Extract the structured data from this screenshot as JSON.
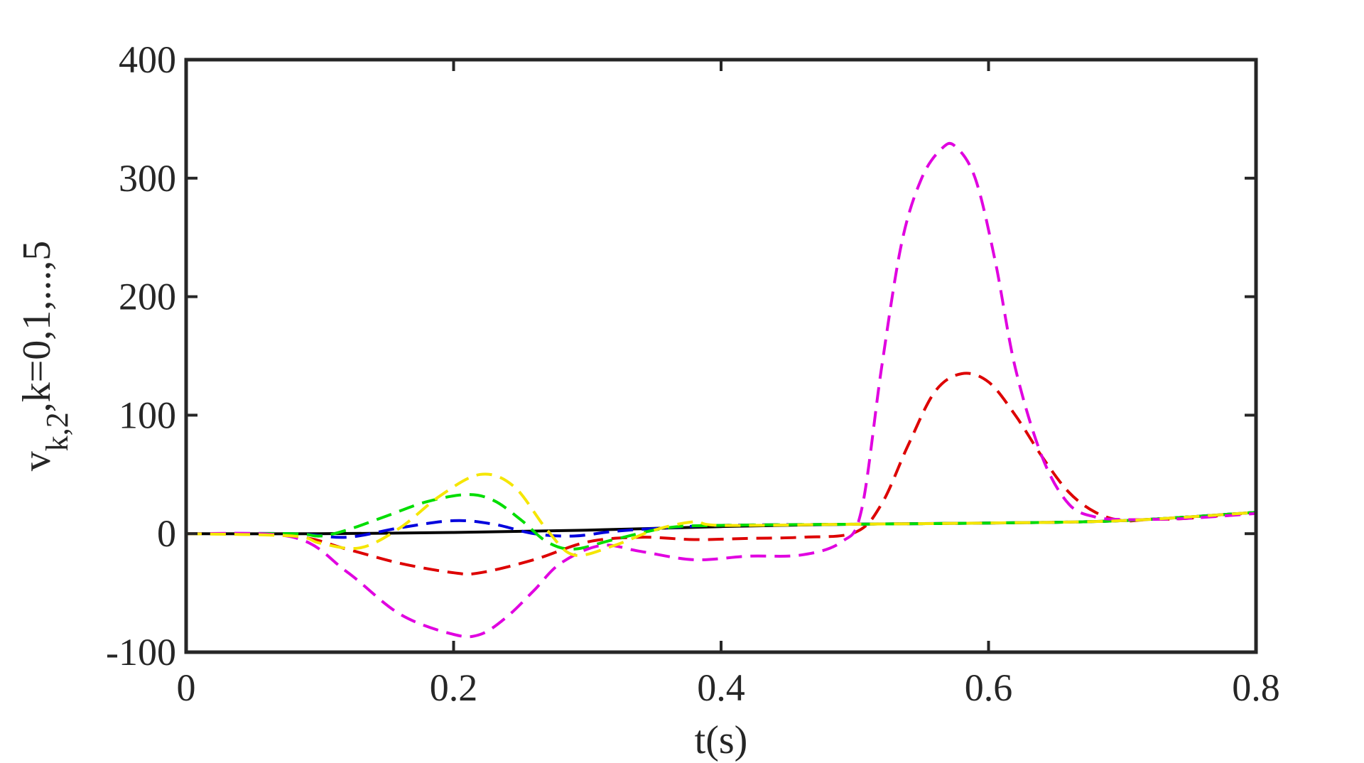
{
  "chart_data": {
    "type": "line",
    "title": "",
    "xlabel": "t(s)",
    "ylabel": {
      "base": "v",
      "sub": "k,2",
      "rest": ",k=0,1,...,5"
    },
    "xlim": [
      0,
      0.8
    ],
    "ylim": [
      -100,
      400
    ],
    "x_ticks": [
      0,
      0.2,
      0.4,
      0.6,
      0.8
    ],
    "x_tick_labels": [
      "0",
      "0.2",
      "0.4",
      "0.6",
      "0.8"
    ],
    "y_ticks": [
      -100,
      0,
      100,
      200,
      300,
      400
    ],
    "y_tick_labels": [
      "-100",
      "0",
      "100",
      "200",
      "300",
      "400"
    ],
    "grid": false,
    "legend": "none",
    "series": [
      {
        "color": "#000000",
        "style": "solid",
        "x": [
          0,
          0.1,
          0.2,
          0.3,
          0.4,
          0.5,
          0.6,
          0.7,
          0.8
        ],
        "y": [
          0,
          0,
          1,
          3,
          6,
          8,
          9,
          11,
          18
        ]
      },
      {
        "color": "#0000dd",
        "style": "dashed",
        "x": [
          0,
          0.08,
          0.12,
          0.16,
          0.2,
          0.23,
          0.26,
          0.29,
          0.32,
          0.36,
          0.4,
          0.5,
          0.6,
          0.7,
          0.8
        ],
        "y": [
          0,
          0,
          -3,
          5,
          11,
          8,
          0,
          -2,
          2,
          5,
          7,
          8,
          9,
          11,
          18
        ]
      },
      {
        "color": "#dd0000",
        "style": "dashed",
        "x": [
          0,
          0.08,
          0.12,
          0.16,
          0.2,
          0.22,
          0.26,
          0.3,
          0.34,
          0.38,
          0.42,
          0.46,
          0.5,
          0.52,
          0.54,
          0.56,
          0.58,
          0.6,
          0.62,
          0.64,
          0.66,
          0.68,
          0.7,
          0.72,
          0.75,
          0.8
        ],
        "y": [
          0,
          -2,
          -13,
          -25,
          -33,
          -33,
          -22,
          -7,
          -3,
          -5,
          -4,
          -3,
          1,
          25,
          75,
          120,
          135,
          128,
          100,
          65,
          35,
          18,
          11,
          12,
          13,
          18
        ]
      },
      {
        "color": "#00dd00",
        "style": "dashed",
        "x": [
          0,
          0.08,
          0.1,
          0.12,
          0.15,
          0.18,
          0.21,
          0.23,
          0.25,
          0.27,
          0.29,
          0.32,
          0.36,
          0.4,
          0.5,
          0.6,
          0.7,
          0.8
        ],
        "y": [
          0,
          0,
          -2,
          3,
          15,
          27,
          33,
          28,
          12,
          -7,
          -13,
          -5,
          5,
          7,
          8,
          9,
          11,
          18
        ]
      },
      {
        "color": "#e000e0",
        "style": "dashed",
        "x": [
          0,
          0.08,
          0.12,
          0.16,
          0.2,
          0.22,
          0.24,
          0.26,
          0.28,
          0.31,
          0.34,
          0.38,
          0.42,
          0.46,
          0.49,
          0.505,
          0.52,
          0.535,
          0.55,
          0.565,
          0.575,
          0.59,
          0.605,
          0.62,
          0.64,
          0.66,
          0.68,
          0.7,
          0.72,
          0.75,
          0.8
        ],
        "y": [
          0,
          -3,
          -32,
          -68,
          -85,
          -85,
          -70,
          -48,
          -25,
          -10,
          -15,
          -22,
          -19,
          -18,
          -7,
          20,
          140,
          245,
          300,
          325,
          327,
          300,
          230,
          140,
          65,
          25,
          14,
          12,
          12,
          13,
          17
        ]
      },
      {
        "color": "#f5e600",
        "style": "dashed",
        "x": [
          0,
          0.08,
          0.1,
          0.13,
          0.16,
          0.19,
          0.22,
          0.245,
          0.27,
          0.29,
          0.32,
          0.35,
          0.38,
          0.4,
          0.5,
          0.6,
          0.7,
          0.8
        ],
        "y": [
          0,
          -2,
          -8,
          -12,
          5,
          32,
          50,
          40,
          3,
          -18,
          -10,
          3,
          10,
          7,
          8,
          9,
          11,
          18
        ]
      }
    ]
  }
}
